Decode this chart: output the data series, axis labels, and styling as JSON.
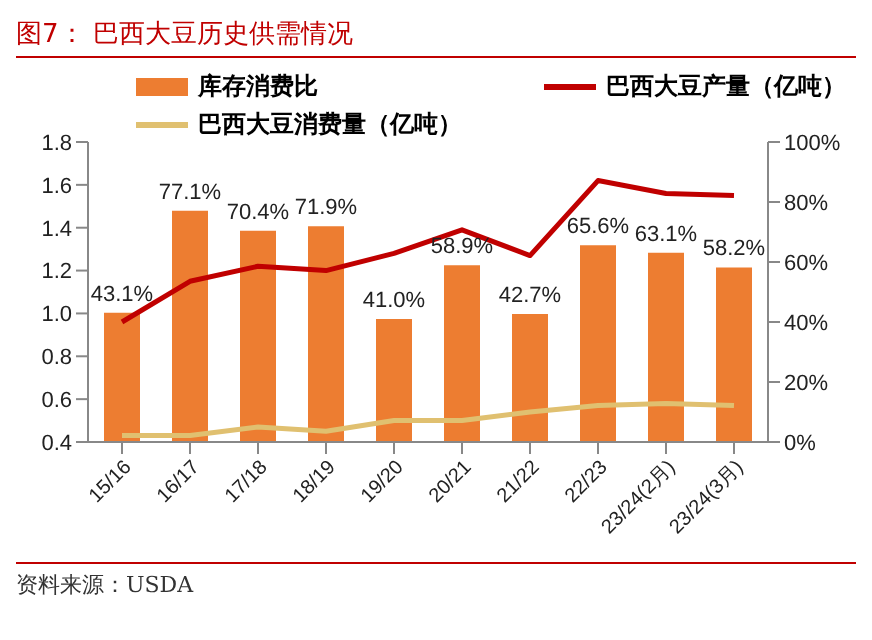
{
  "chart_data": {
    "type": "bar",
    "title": "图7：  巴西大豆历史供需情况",
    "categories": [
      "15/16",
      "16/17",
      "17/18",
      "18/19",
      "19/20",
      "20/21",
      "21/22",
      "22/23",
      "23/24(2月)",
      "23/24(3月)"
    ],
    "series": [
      {
        "name": "库存消费比",
        "axis": "y2",
        "color": "#ed7d31",
        "values": [
          43.1,
          77.1,
          70.4,
          71.9,
          41.0,
          58.9,
          42.7,
          65.6,
          63.1,
          58.2
        ],
        "value_labels": [
          "43.1%",
          "77.1%",
          "70.4%",
          "71.9%",
          "41.0%",
          "58.9%",
          "42.7%",
          "65.6%",
          "63.1%",
          "58.2%"
        ]
      },
      {
        "name": "巴西大豆产量（亿吨）",
        "type": "line",
        "color": "#c00000",
        "values": [
          0.96,
          1.15,
          1.22,
          1.2,
          1.28,
          1.39,
          1.27,
          1.62,
          1.56,
          1.55
        ]
      },
      {
        "name": "巴西大豆消费量（亿吨）",
        "type": "line",
        "color": "#e0c070",
        "values": [
          0.43,
          0.43,
          0.47,
          0.45,
          0.5,
          0.5,
          0.54,
          0.57,
          0.58,
          0.57
        ]
      }
    ],
    "ylim": [
      0.4,
      1.8
    ],
    "yticks": [
      0.4,
      0.6,
      0.8,
      {
        "value": 1,
        "label": "1.0"
      },
      1.2,
      1.4,
      1.6,
      1.8
    ],
    "y2lim": [
      0,
      100
    ],
    "y2ticks": [
      {
        "value": 0,
        "label": "0%"
      },
      {
        "value": 20,
        "label": "20%"
      },
      {
        "value": 40,
        "label": "40%"
      },
      {
        "value": 60,
        "label": "60%"
      },
      {
        "value": 80,
        "label": "80%"
      },
      {
        "value": 100,
        "label": "100%"
      }
    ],
    "legend": "top",
    "marker": "none",
    "line_style": "solid",
    "annotations": [
      "资料来源：USDA"
    ]
  }
}
